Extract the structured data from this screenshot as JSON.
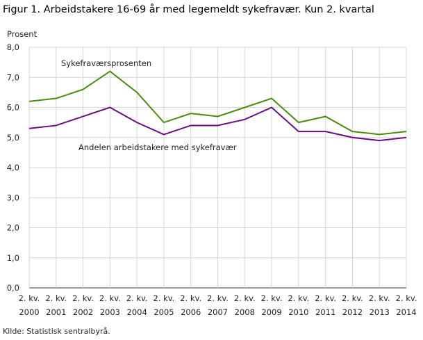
{
  "chart_data": {
    "type": "line",
    "title": "Figur 1. Arbeidstakere 16-69 år med  legemeldt sykefravær. Kun 2. kvartal",
    "ylabel": "Prosent",
    "xlabel": "",
    "ylim": [
      0,
      8
    ],
    "yticks": [
      "0,0",
      "1,0",
      "2,0",
      "3,0",
      "4,0",
      "5,0",
      "6,0",
      "7,0",
      "8,0"
    ],
    "categories": [
      [
        "2. kv.",
        "2000"
      ],
      [
        "2. kv.",
        "2001"
      ],
      [
        "2. kv.",
        "2002"
      ],
      [
        "2. kv.",
        "2003"
      ],
      [
        "2. kv.",
        "2004"
      ],
      [
        "2. kv.",
        "2005"
      ],
      [
        "2. kv.",
        "2006"
      ],
      [
        "2. kv.",
        "2007"
      ],
      [
        "2. kv.",
        "2008"
      ],
      [
        "2. kv.",
        "2009"
      ],
      [
        "2. kv.",
        "2010"
      ],
      [
        "2. kv.",
        "2011"
      ],
      [
        "2. kv.",
        "2012"
      ],
      [
        "2. kv.",
        "2013"
      ],
      [
        "2. kv.",
        "2014"
      ]
    ],
    "grid": true,
    "series": [
      {
        "name": "Sykefraværsprosenten",
        "color": "#4a8c0c",
        "values": [
          6.2,
          6.3,
          6.6,
          7.2,
          6.5,
          5.5,
          5.8,
          5.7,
          6.0,
          6.3,
          5.5,
          5.7,
          5.2,
          5.1,
          5.2
        ]
      },
      {
        "name": "Andelen  arbeidstakere  med sykefravær",
        "color": "#6a0d83",
        "values": [
          5.3,
          5.4,
          5.7,
          6.0,
          5.5,
          5.1,
          5.4,
          5.4,
          5.6,
          6.0,
          5.2,
          5.2,
          5.0,
          4.9,
          5.0
        ]
      }
    ],
    "source": "Kilde: Statistisk sentralbyrå."
  }
}
